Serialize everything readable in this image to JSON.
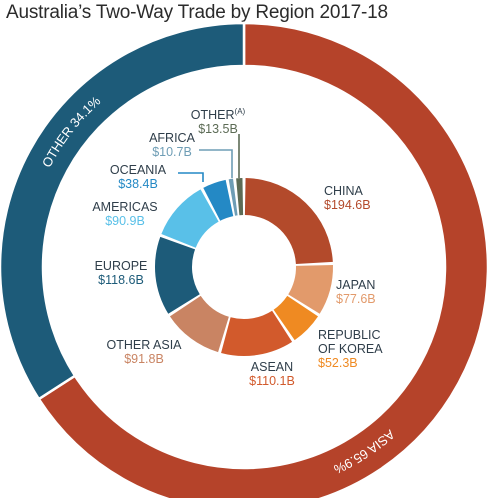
{
  "chart_data": {
    "type": "pie",
    "title": "Australia’s Two-Way Trade by Region 2017-18",
    "outer_ring": [
      {
        "label": "ASIA",
        "percent": 65.9,
        "display": "ASIA 65.9%",
        "color": "#B5432A"
      },
      {
        "label": "OTHER",
        "percent": 34.1,
        "display": "OTHER 34.1%",
        "color": "#1D5B79"
      }
    ],
    "inner_ring": [
      {
        "name": "CHINA",
        "value": 194.6,
        "value_label": "$194.6B",
        "color": "#B34A2B"
      },
      {
        "name": "JAPAN",
        "value": 77.6,
        "value_label": "$77.6B",
        "color": "#E29A6B"
      },
      {
        "name": "REPUBLIC OF KOREA",
        "lines": [
          "REPUBLIC",
          "OF KOREA"
        ],
        "value": 52.3,
        "value_label": "$52.3B",
        "color": "#EF8A22"
      },
      {
        "name": "ASEAN",
        "value": 110.1,
        "value_label": "$110.1B",
        "color": "#D25A2C"
      },
      {
        "name": "OTHER ASIA",
        "value": 91.8,
        "value_label": "$91.8B",
        "color": "#C98463"
      },
      {
        "name": "EUROPE",
        "value": 118.6,
        "value_label": "$118.6B",
        "color": "#1D5B79"
      },
      {
        "name": "AMERICAS",
        "value": 90.9,
        "value_label": "$90.9B",
        "color": "#59C0E8"
      },
      {
        "name": "OCEANIA",
        "value": 38.4,
        "value_label": "$38.4B",
        "color": "#2489C5"
      },
      {
        "name": "AFRICA",
        "value": 10.7,
        "value_label": "$10.7B",
        "color": "#6E9DB5"
      },
      {
        "name": "OTHER",
        "superscript": "(a)",
        "value": 13.5,
        "value_label": "$13.5B",
        "color": "#5C6B55"
      }
    ]
  }
}
